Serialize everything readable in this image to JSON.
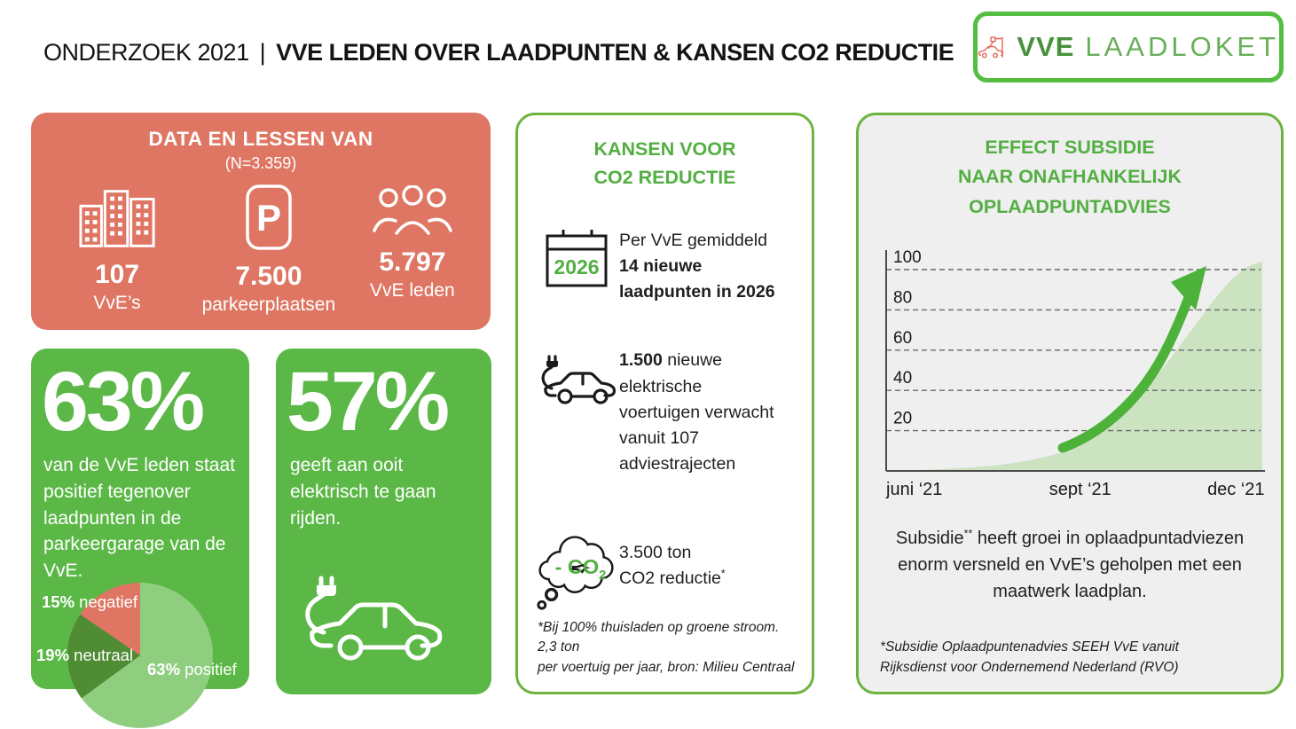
{
  "header": {
    "title_prefix": "ONDERZOEK 2021",
    "divider": "|",
    "title_main": "VVE LEDEN OVER LAADPUNTEN & KANSEN CO2 REDUCTIE"
  },
  "logo": {
    "brand_bold": "VVE",
    "brand_light": "LAADLOKET"
  },
  "colors": {
    "salmon": "#de7663",
    "card_green": "#5bb847",
    "accent_green_text": "#53af43",
    "outline_green": "#6cb33f",
    "logo_border_green": "#54be43",
    "pie_light_green": "#90ce7f",
    "pie_dark_green": "#4f8c33",
    "chart_fill": "#cbe3c1",
    "arrow_green": "#4cb23a",
    "gray_panel": "#efefef"
  },
  "data_card": {
    "title": "DATA EN LESSEN VAN",
    "subtitle": "(N=3.359)",
    "stats": [
      {
        "icon": "buildings-icon",
        "value": "107",
        "label": "VvE’s"
      },
      {
        "icon": "parking-icon",
        "icon_letter": "P",
        "value": "7.500",
        "label": "parkeerplaatsen"
      },
      {
        "icon": "people-icon",
        "value": "5.797",
        "label": "VvE leden"
      }
    ]
  },
  "positive_card": {
    "value": "63%",
    "text": "van de VvE leden staat positief tegenover laadpunten in de parkeergarage van de VvE.",
    "pie": {
      "slices": [
        {
          "pct": 63,
          "pct_label": "63%",
          "name": "positief",
          "color": "#90ce7f"
        },
        {
          "pct": 19,
          "pct_label": "19%",
          "name": "neutraal",
          "color": "#4f8c33"
        },
        {
          "pct": 15,
          "pct_label": "15%",
          "name": "negatief",
          "color": "#de7663"
        }
      ]
    }
  },
  "electric_card": {
    "value": "57%",
    "text": "geeft aan ooit elektrisch te gaan rijden."
  },
  "kansen_card": {
    "title_line1": "KANSEN VOOR",
    "title_line2": "CO2 REDUCTIE",
    "items": [
      {
        "icon": "calendar-2026-icon",
        "calendar_year": "2026",
        "segments": [
          {
            "text": "Per VvE gemiddeld",
            "bold": false
          },
          {
            "text": "14 nieuwe",
            "bold": true
          },
          {
            "text": "laadpunten in 2026",
            "bold": true
          }
        ]
      },
      {
        "icon": "electric-car-icon",
        "segments": [
          {
            "text": "1.500",
            "bold": true
          },
          {
            "text": "nieuwe",
            "bold": false
          },
          {
            "text": "elektrische",
            "bold": false
          },
          {
            "text": "voertuigen verwacht",
            "bold": false
          },
          {
            "text": "vanuit 107",
            "bold": false
          },
          {
            "text": "adviestrajecten",
            "bold": false
          }
        ]
      },
      {
        "icon": "co2-cloud-icon",
        "cloud_text": "- CO",
        "cloud_sub": "2",
        "segments": [
          {
            "text": "3.500 ton",
            "bold": false
          },
          {
            "text": "CO2 reductie",
            "bold": false
          },
          {
            "text": "*",
            "bold": false,
            "sup": true
          }
        ]
      }
    ],
    "footnote_line1": "*Bij 100% thuisladen op groene stroom. 2,3 ton",
    "footnote_line2": "per voertuig per jaar, bron: Milieu Centraal"
  },
  "subsidie_card": {
    "title_lines": [
      "EFFECT SUBSIDIE",
      "NAAR ONAFHANKELIJK",
      "OPLAADPUNTADVIES"
    ],
    "body_prefix": "Subsidie",
    "body_sup": "**",
    "body_rest": " heeft groei in oplaadpuntadviezen enorm versneld en VvE’s geholpen met een maatwerk laadplan.",
    "footnote_line1": "*Subsidie Oplaadpuntenadvies SEEH VvE vanuit",
    "footnote_line2": "Rijksdienst voor Ondernemend Nederland (RVO)"
  },
  "chart_data": {
    "type": "area",
    "title": "EFFECT SUBSIDIE NAAR ONAFHANKELIJK OPLAADPUNTADVIES",
    "xlabel": "",
    "ylabel": "",
    "ylim": [
      0,
      100
    ],
    "grid": "dashed-horizontal",
    "y_ticks": [
      100,
      80,
      60,
      40,
      20
    ],
    "x_ticks": [
      {
        "label": "juni ‘21",
        "f": 0.0
      },
      {
        "label": "sept ‘21",
        "f": 0.516
      },
      {
        "label": "dec ‘21",
        "f": 0.93
      }
    ],
    "points": [
      {
        "f": 0.0,
        "v": 0
      },
      {
        "f": 0.12,
        "v": 0.5
      },
      {
        "f": 0.25,
        "v": 2
      },
      {
        "f": 0.35,
        "v": 4
      },
      {
        "f": 0.45,
        "v": 8
      },
      {
        "f": 0.516,
        "v": 13
      },
      {
        "f": 0.62,
        "v": 25
      },
      {
        "f": 0.72,
        "v": 47
      },
      {
        "f": 0.82,
        "v": 72
      },
      {
        "f": 0.9,
        "v": 92
      },
      {
        "f": 0.96,
        "v": 102
      },
      {
        "f": 1.0,
        "v": 104
      }
    ],
    "annotation": "growth-arrow",
    "fill_color": "#cbe3c1",
    "arrow_color": "#4cb23a"
  }
}
